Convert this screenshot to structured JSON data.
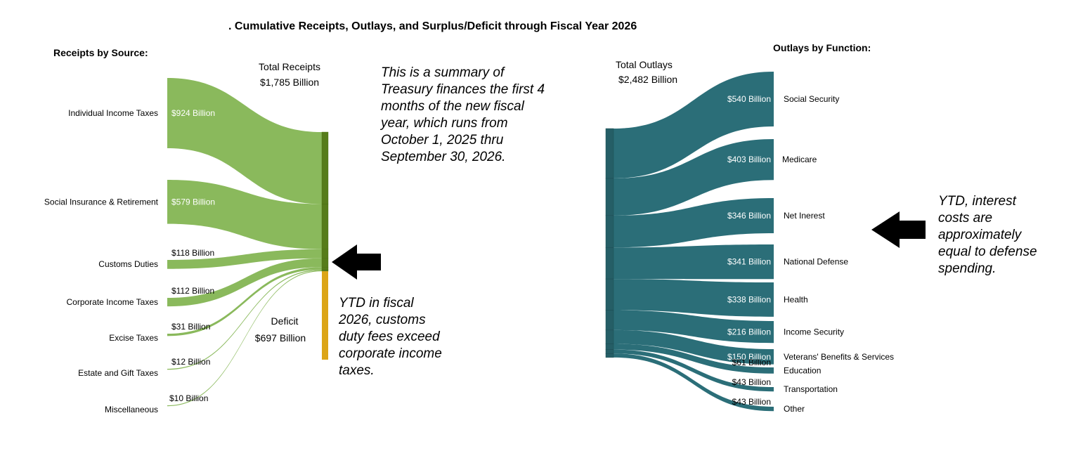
{
  "title": ". Cumulative Receipts, Outlays, and Surplus/Deficit through Fiscal Year 2026",
  "receipts": {
    "section_label": "Receipts by Source:",
    "total_label": "Total Receipts",
    "total_value": "$1,785 Billion",
    "deficit_label": "Deficit",
    "deficit_value": "$697 Billion",
    "total_billion": 1785,
    "deficit_billion": 697,
    "color_flow": "#8ab95c",
    "color_bar": "#567c1a",
    "color_deficit": "#dca517",
    "items": [
      {
        "name": "Individual Income Taxes",
        "value_label": "$924 Billion",
        "value": 924
      },
      {
        "name": "Social Insurance & Retirement",
        "value_label": "$579 Billion",
        "value": 579
      },
      {
        "name": "Customs Duties",
        "value_label": "$118 Billion",
        "value": 118
      },
      {
        "name": "Corporate Income Taxes",
        "value_label": "$112 Billion",
        "value": 112
      },
      {
        "name": "Excise Taxes",
        "value_label": "$31 Billion",
        "value": 31
      },
      {
        "name": "Estate and Gift Taxes",
        "value_label": "$12 Billion",
        "value": 12
      },
      {
        "name": "Miscellaneous",
        "value_label": "$10 Billion",
        "value": 10
      }
    ]
  },
  "outlays": {
    "section_label": "Outlays by Function:",
    "total_label": "Total Outlays",
    "total_value": "$2,482 Billion",
    "total_billion": 2482,
    "color_flow": "#2b6e78",
    "color_bar": "#255e66",
    "items": [
      {
        "name": "Social Security",
        "value_label": "$540 Billion",
        "value": 540
      },
      {
        "name": "Medicare",
        "value_label": "$403 Billion",
        "value": 403
      },
      {
        "name": "Net Inerest",
        "value_label": "$346 Billion",
        "value": 346
      },
      {
        "name": "National Defense",
        "value_label": "$341 Billion",
        "value": 341
      },
      {
        "name": "Health",
        "value_label": "$338 Billion",
        "value": 338
      },
      {
        "name": "Income Security",
        "value_label": "$216 Billion",
        "value": 216
      },
      {
        "name": "Veterans' Benefits & Services",
        "value_label": "$150 Billion",
        "value": 150
      },
      {
        "name": "Education",
        "value_label": "$61 Billion",
        "value": 61
      },
      {
        "name": "Transportation",
        "value_label": "$43 Billion",
        "value": 43
      },
      {
        "name": "Other",
        "value_label": "$43 Billion",
        "value": 43
      }
    ]
  },
  "annotations": {
    "summary": [
      "This is a summary of",
      "Treasury finances the first 4",
      "months of the new fiscal",
      "year, which runs from",
      "October 1, 2025 thru",
      "September 30, 2026."
    ],
    "customs": [
      "YTD in fiscal",
      "2026, customs",
      "duty fees exceed",
      "corporate income",
      "taxes."
    ],
    "interest": [
      "YTD, interest",
      "costs are",
      "approximately",
      "equal to defense",
      "spending."
    ]
  }
}
